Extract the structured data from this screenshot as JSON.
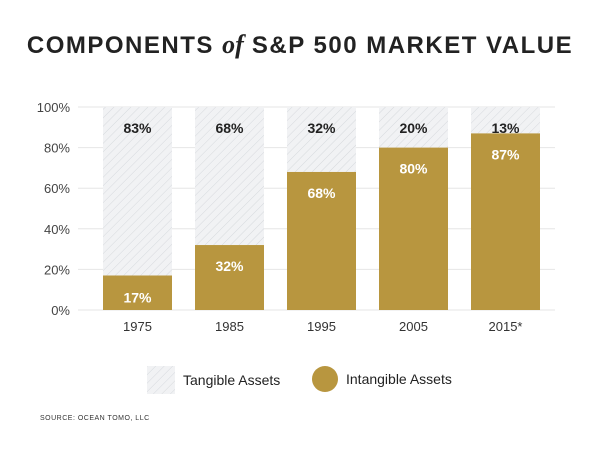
{
  "chart_data": {
    "type": "bar",
    "stacked": true,
    "title_parts": [
      "COMPONENTS",
      "of",
      "S&P 500 MARKET VALUE"
    ],
    "categories": [
      "1975",
      "1985",
      "1995",
      "2005",
      "2015*"
    ],
    "series": [
      {
        "name": "Intangible Assets",
        "values": [
          17,
          32,
          68,
          80,
          87
        ],
        "labels": [
          "17%",
          "32%",
          "68%",
          "80%",
          "87%"
        ],
        "color": "#b8963f"
      },
      {
        "name": "Tangible Assets",
        "values": [
          83,
          68,
          32,
          20,
          13
        ],
        "labels": [
          "83%",
          "68%",
          "32%",
          "20%",
          "13%"
        ],
        "color": "#eef0f2",
        "pattern": "diagonal-hatch"
      }
    ],
    "ylim": [
      0,
      100
    ],
    "yticks": [
      "0%",
      "20%",
      "40%",
      "60%",
      "80%",
      "100%"
    ],
    "grid": true,
    "legend": "bottom"
  },
  "source": "SOURCE: OCEAN TOMO, LLC"
}
